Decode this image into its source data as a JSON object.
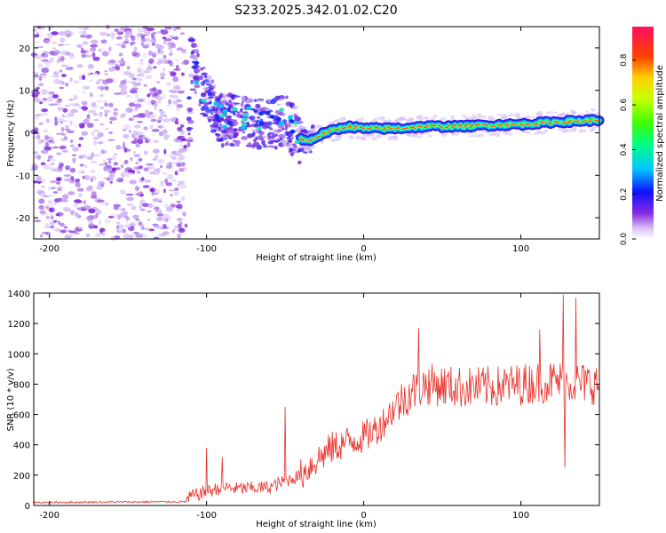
{
  "title": "S233.2025.342.01.02.C20",
  "spectrogram": {
    "type": "heatmap",
    "xlabel": "Height of straight line (km)",
    "ylabel": "Frequency (Hz)",
    "xlim": [
      -210,
      150
    ],
    "ylim": [
      -25,
      25
    ],
    "xticks": [
      -200,
      -100,
      0,
      100
    ],
    "yticks": [
      -20,
      -10,
      0,
      10,
      20
    ],
    "noise_region_x": [
      -210,
      -113
    ],
    "ridge": [
      {
        "x": -110,
        "y": 17
      },
      {
        "x": -100,
        "y": 8
      },
      {
        "x": -90,
        "y": 3
      },
      {
        "x": -75,
        "y": 3
      },
      {
        "x": -60,
        "y": 2
      },
      {
        "x": -50,
        "y": 3
      },
      {
        "x": -42,
        "y": -1
      },
      {
        "x": -35,
        "y": -2
      },
      {
        "x": -25,
        "y": 0
      },
      {
        "x": -10,
        "y": 1.5
      },
      {
        "x": 0,
        "y": 1
      },
      {
        "x": 20,
        "y": 1
      },
      {
        "x": 40,
        "y": 1.5
      },
      {
        "x": 60,
        "y": 1.5
      },
      {
        "x": 80,
        "y": 1.8
      },
      {
        "x": 100,
        "y": 2
      },
      {
        "x": 120,
        "y": 2.5
      },
      {
        "x": 150,
        "y": 3
      }
    ],
    "colorbar": {
      "label": "Normalized spectral amplitude",
      "ticks": [
        "0.0",
        "0.2",
        "0.4",
        "0.6",
        "0.8"
      ],
      "range": [
        0,
        0.95
      ]
    }
  },
  "snr": {
    "type": "line",
    "xlabel": "Height of straight line (km)",
    "ylabel": "SNR (10 * v/v)",
    "xlim": [
      -210,
      150
    ],
    "ylim": [
      0,
      1400
    ],
    "xticks": [
      -200,
      -100,
      0,
      100
    ],
    "yticks": [
      0,
      200,
      400,
      600,
      800,
      1000,
      1200,
      1400
    ],
    "color": "#e8302a",
    "trend": [
      {
        "x": -210,
        "y": 20
      },
      {
        "x": -113,
        "y": 25
      },
      {
        "x": -110,
        "y": 60
      },
      {
        "x": -100,
        "y": 90
      },
      {
        "x": -90,
        "y": 120
      },
      {
        "x": -80,
        "y": 110
      },
      {
        "x": -60,
        "y": 120
      },
      {
        "x": -40,
        "y": 200
      },
      {
        "x": -30,
        "y": 300
      },
      {
        "x": -20,
        "y": 380
      },
      {
        "x": -10,
        "y": 420
      },
      {
        "x": 0,
        "y": 450
      },
      {
        "x": 10,
        "y": 520
      },
      {
        "x": 20,
        "y": 650
      },
      {
        "x": 30,
        "y": 750
      },
      {
        "x": 40,
        "y": 800
      },
      {
        "x": 60,
        "y": 780
      },
      {
        "x": 80,
        "y": 780
      },
      {
        "x": 100,
        "y": 800
      },
      {
        "x": 120,
        "y": 820
      },
      {
        "x": 150,
        "y": 800
      }
    ],
    "spikes": [
      {
        "x": -100,
        "y": 380
      },
      {
        "x": -90,
        "y": 320
      },
      {
        "x": -50,
        "y": 650
      },
      {
        "x": 35,
        "y": 1170
      },
      {
        "x": 112,
        "y": 1160
      },
      {
        "x": 127,
        "y": 1390
      },
      {
        "x": 128,
        "y": 250
      },
      {
        "x": 135,
        "y": 1370
      }
    ]
  }
}
